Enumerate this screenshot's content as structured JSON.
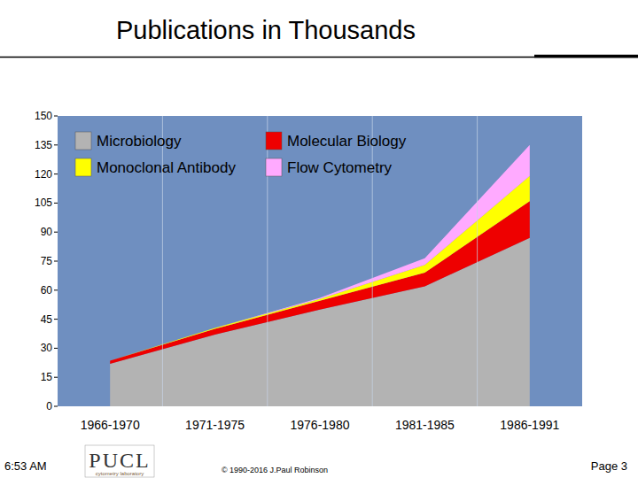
{
  "chart_data": {
    "type": "area",
    "title": "Publications in Thousands",
    "categories": [
      "1966-1970",
      "1971-1975",
      "1976-1980",
      "1981-1985",
      "1986-1991"
    ],
    "series": [
      {
        "name": "Microbiology",
        "color": "#b3b3b3",
        "values": [
          22,
          37,
          50,
          62,
          87
        ]
      },
      {
        "name": "Molecular Biology",
        "color": "#ee0000",
        "values": [
          1.5,
          3,
          4.5,
          7,
          19
        ]
      },
      {
        "name": "Monoclonal Antibody",
        "color": "#ffff00",
        "values": [
          0,
          0.5,
          1,
          4,
          13
        ]
      },
      {
        "name": "Flow Cytometry",
        "color": "#ffaaff",
        "values": [
          0,
          0,
          0.5,
          3.5,
          16
        ]
      }
    ],
    "ylim": [
      0,
      150
    ],
    "yticks": [
      0,
      15,
      30,
      45,
      60,
      75,
      90,
      105,
      120,
      135,
      150
    ],
    "stacked": true,
    "grid": true,
    "legend": "top-left"
  },
  "slide": {
    "time": "6:53 AM",
    "logo": "PUCL",
    "logo_subtitle": "cytometry laboratory",
    "copyright": "© 1990-2016 J.Paul Robinson",
    "page": "Page 3"
  }
}
